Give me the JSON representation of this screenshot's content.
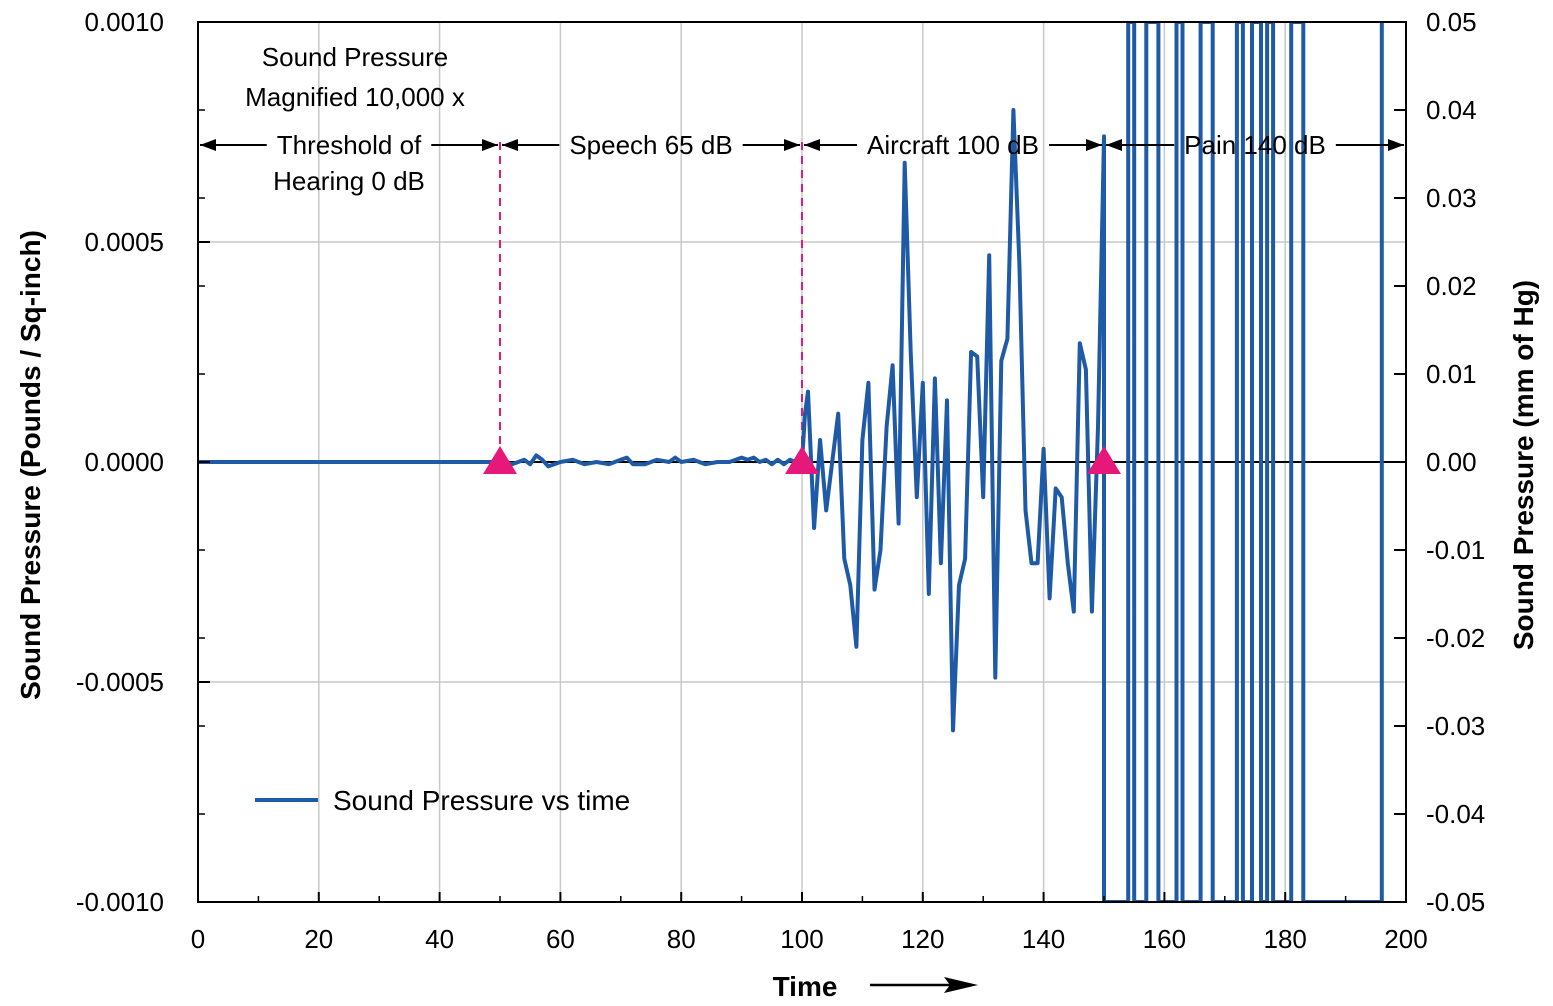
{
  "chart_data": {
    "type": "line",
    "xlabel": "Time",
    "ylabel_left": "Sound Pressure (Pounds / Sq-inch)",
    "ylabel_right": "Sound Pressure (mm of Hg)",
    "xlim": [
      0,
      200
    ],
    "ylim_left": [
      -0.001,
      0.001
    ],
    "ylim_right": [
      -0.05,
      0.05
    ],
    "x_ticks": [
      "0",
      "20",
      "40",
      "60",
      "80",
      "100",
      "120",
      "140",
      "160",
      "180",
      "200"
    ],
    "y_ticks_left": [
      {
        "value": 0.001,
        "label": "0.0010"
      },
      {
        "value": 0.0005,
        "label": "0.0005"
      },
      {
        "value": 0,
        "label": "0.0000"
      },
      {
        "value": -0.0005,
        "label": "-0.0005"
      },
      {
        "value": -0.001,
        "label": "-0.0010"
      }
    ],
    "y_ticks_right": [
      {
        "value": 0.05,
        "label": "0.05"
      },
      {
        "value": 0.04,
        "label": "0.04"
      },
      {
        "value": 0.03,
        "label": "0.03"
      },
      {
        "value": 0.02,
        "label": "0.02"
      },
      {
        "value": 0.01,
        "label": "0.01"
      },
      {
        "value": 0,
        "label": "0.00"
      },
      {
        "value": -0.01,
        "label": "-0.01"
      },
      {
        "value": -0.02,
        "label": "-0.02"
      },
      {
        "value": -0.03,
        "label": "-0.03"
      },
      {
        "value": -0.04,
        "label": "-0.04"
      },
      {
        "value": -0.05,
        "label": "-0.05"
      }
    ],
    "grid": true,
    "legend_placement": "bottom-left",
    "colors": {
      "series": "#1f5aa6",
      "marker": "#e6197a",
      "grid": "#c8c8c8",
      "axis": "#000000"
    },
    "note_lines": [
      "Sound Pressure",
      "Magnified 10,000 x"
    ],
    "regions": [
      {
        "label_lines": [
          "Threshold of",
          "Hearing 0 dB"
        ],
        "from": 0,
        "to": 50
      },
      {
        "label_lines": [
          "Speech 65 dB"
        ],
        "from": 50,
        "to": 100
      },
      {
        "label_lines": [
          "Aircraft 100 dB"
        ],
        "from": 100,
        "to": 150
      },
      {
        "label_lines": [
          "Pain 140 dB"
        ],
        "from": 150,
        "to": 200
      }
    ],
    "markers": [
      50,
      100,
      150
    ],
    "series": [
      {
        "name": "Sound Pressure vs time",
        "x": [
          0,
          10,
          20,
          30,
          40,
          50,
          52,
          54,
          55,
          56,
          57,
          58,
          60,
          62,
          64,
          66,
          68,
          70,
          71,
          72,
          74,
          76,
          78,
          79,
          80,
          82,
          84,
          86,
          88,
          90,
          91,
          92,
          93,
          94,
          95,
          96,
          97,
          98,
          99,
          100,
          100.5,
          101,
          102,
          103,
          104,
          105,
          106,
          107,
          108,
          109,
          110,
          111,
          112,
          113,
          114,
          115,
          116,
          117,
          118,
          119,
          120,
          121,
          122,
          123,
          124,
          125,
          126,
          127,
          128,
          129,
          130,
          131,
          132,
          133,
          134,
          135,
          136,
          137,
          138,
          139,
          140,
          141,
          142,
          143,
          144,
          145,
          146,
          147,
          148,
          149,
          150,
          150,
          154,
          154,
          155,
          155,
          157,
          157,
          159,
          159,
          162,
          162,
          163,
          163,
          166,
          166,
          168,
          168,
          172,
          172,
          173,
          173,
          174.5,
          174.5,
          176,
          176,
          177,
          177,
          178,
          178,
          181,
          181,
          183,
          183,
          196,
          196
        ],
        "y": [
          0,
          0,
          0,
          0,
          0,
          0,
          -5e-06,
          5e-06,
          -5e-06,
          1.5e-05,
          5e-06,
          -1e-05,
          0,
          5e-06,
          -5e-06,
          0,
          -5e-06,
          5e-06,
          1e-05,
          -5e-06,
          -5e-06,
          5e-06,
          0,
          1e-05,
          0,
          5e-06,
          -5e-06,
          0,
          0,
          1e-05,
          5e-06,
          1e-05,
          0,
          5e-06,
          -5e-06,
          5e-06,
          -5e-06,
          5e-06,
          0,
          0,
          0.00011,
          0.00016,
          -0.00015,
          5e-05,
          -0.00011,
          0.0,
          0.00011,
          -0.00022,
          -0.00028,
          -0.00042,
          5e-05,
          0.00018,
          -0.00029,
          -0.0002,
          8e-05,
          0.00022,
          -0.00014,
          0.00068,
          0.00025,
          -8e-05,
          0.00018,
          -0.0003,
          0.00019,
          -0.00023,
          0.00014,
          -0.00061,
          -0.00028,
          -0.00022,
          0.00025,
          0.00024,
          -8e-05,
          0.00047,
          -0.00049,
          0.00023,
          0.00028,
          0.0008,
          0.00045,
          -0.00011,
          -0.00023,
          -0.00023,
          3e-05,
          -0.00031,
          -6e-05,
          -8e-05,
          -0.00023,
          -0.00034,
          0.00027,
          0.00021,
          -0.00034,
          8e-05,
          0.00074,
          -0.001,
          -0.001,
          0.001,
          0.001,
          -0.001,
          -0.001,
          0.001,
          0.001,
          -0.001,
          -0.001,
          0.001,
          0.001,
          -0.001,
          -0.001,
          0.001,
          0.001,
          -0.001,
          -0.001,
          0.001,
          0.001,
          -0.001,
          -0.001,
          0.001,
          0.001,
          -0.001,
          -0.001,
          0.001,
          0.001,
          -0.001,
          -0.001,
          0.001,
          0.001,
          -0.001,
          -0.001,
          0.001
        ]
      }
    ]
  }
}
